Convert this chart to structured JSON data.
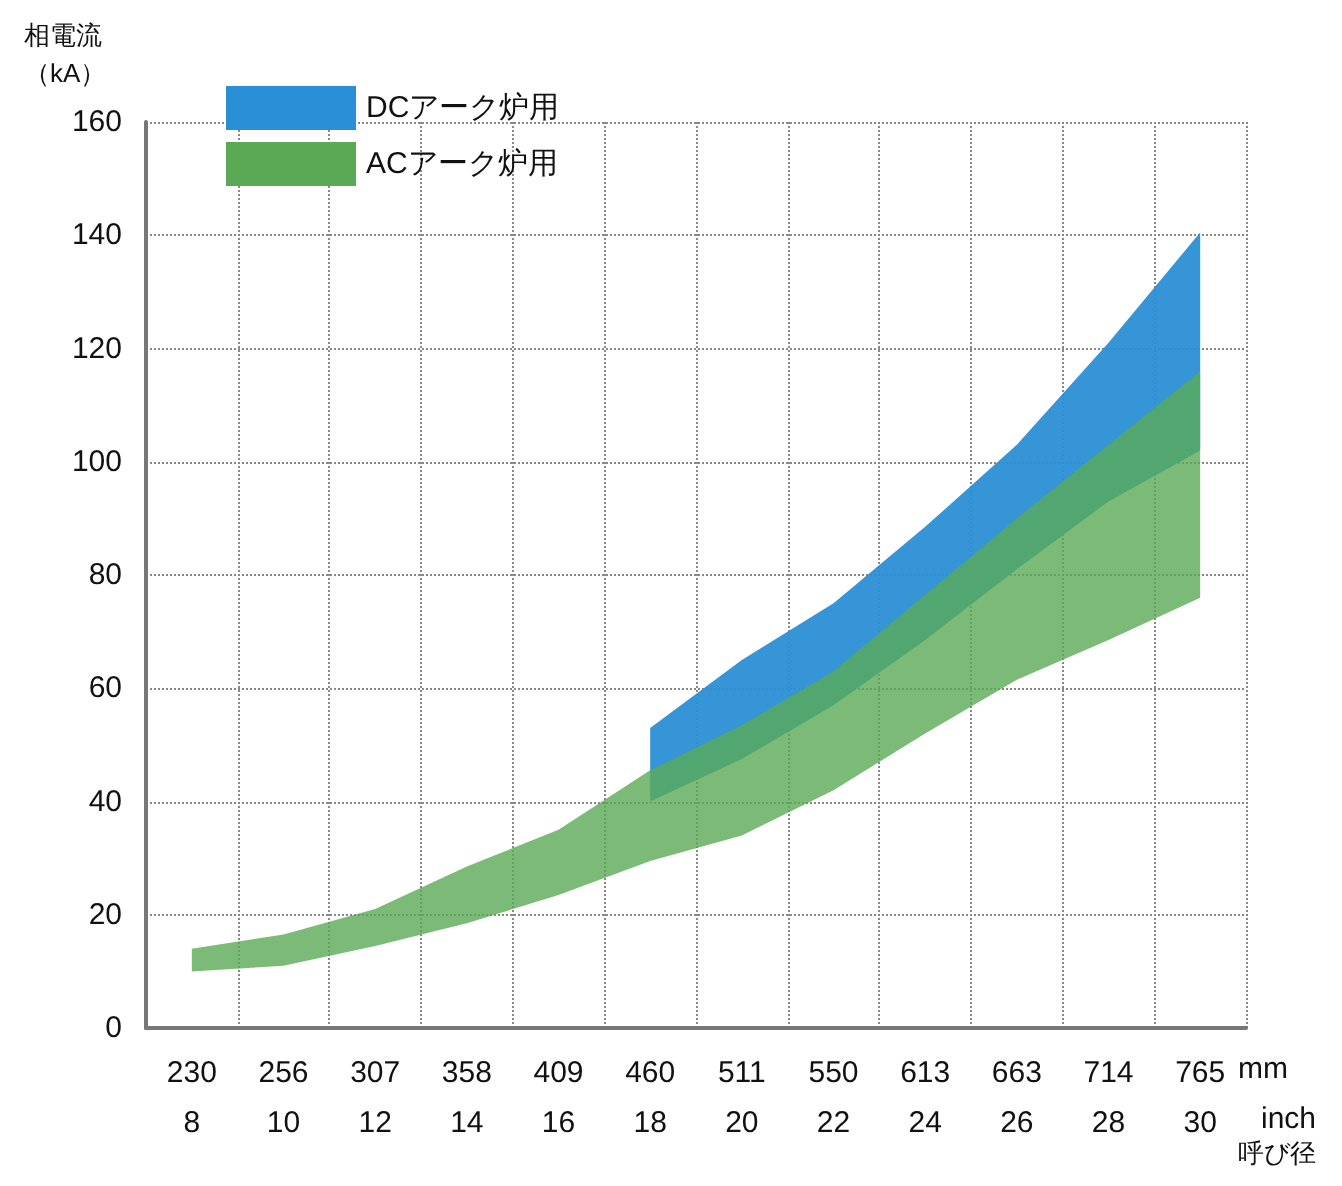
{
  "chart_data": {
    "type": "area",
    "ylabel": "相電流（kA）",
    "xlabel": "呼び径",
    "categories": [
      "230\n8",
      "256\n10",
      "307\n12",
      "358\n14",
      "409\n16",
      "460\n18",
      "511\n20",
      "550\n22",
      "613\n24",
      "663\n26",
      "714\n28",
      "765\n30"
    ],
    "series": [
      {
        "name": "DCアーク炉用",
        "color": "#2a8fd4",
        "values": [
          null,
          null,
          null,
          null,
          null,
          null,
          null,
          null,
          null,
          null,
          null,
          null
        ],
        "upper": [
          null,
          null,
          null,
          null,
          null,
          53,
          65,
          75,
          88.5,
          103,
          121,
          140.5
        ],
        "lower": [
          null,
          null,
          null,
          null,
          null,
          40,
          47.5,
          57,
          68.5,
          81,
          93,
          102
        ]
      },
      {
        "name": "ACアーク炉用",
        "color": "#5aaa55",
        "values": [
          null,
          null,
          null,
          null,
          null,
          null,
          null,
          null,
          null,
          null,
          null,
          null
        ],
        "upper": [
          14,
          16.5,
          21,
          28.5,
          35,
          45.5,
          53.5,
          63,
          76.5,
          90,
          103,
          116
        ],
        "lower": [
          10,
          11,
          14.5,
          18.5,
          23.5,
          29.5,
          34,
          42,
          52,
          61.5,
          68.5,
          76
        ]
      }
    ],
    "ylim": [
      0,
      160
    ],
    "yticks": [
      0,
      20,
      40,
      60,
      80,
      100,
      120,
      140,
      160
    ],
    "grid": true,
    "legend": "top left",
    "annotations": [
      "mm",
      "inch"
    ]
  }
}
